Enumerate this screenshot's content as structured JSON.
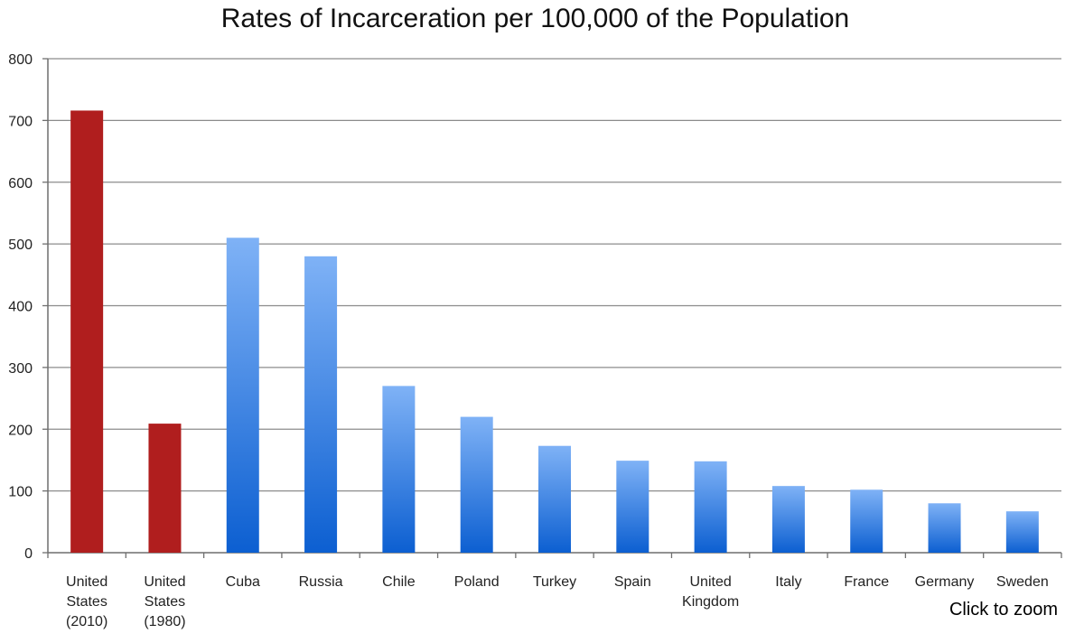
{
  "chart_data": {
    "type": "bar",
    "title": "Rates of Incarceration per 100,000 of the Population",
    "xlabel": "",
    "ylabel": "",
    "ylim": [
      0,
      800
    ],
    "yticks": [
      0,
      100,
      200,
      300,
      400,
      500,
      600,
      700,
      800
    ],
    "grid": true,
    "categories": [
      [
        "United",
        "States",
        "(2010)"
      ],
      [
        "United",
        "States",
        "(1980)"
      ],
      [
        "Cuba"
      ],
      [
        "Russia"
      ],
      [
        "Chile"
      ],
      [
        "Poland"
      ],
      [
        "Turkey"
      ],
      [
        "Spain"
      ],
      [
        "United",
        "Kingdom"
      ],
      [
        "Italy"
      ],
      [
        "France"
      ],
      [
        "Germany"
      ],
      [
        "Sweden"
      ]
    ],
    "values": [
      716,
      209,
      510,
      480,
      270,
      220,
      173,
      149,
      148,
      108,
      102,
      80,
      67
    ],
    "bar_groups": [
      "us",
      "us",
      "intl",
      "intl",
      "intl",
      "intl",
      "intl",
      "intl",
      "intl",
      "intl",
      "intl",
      "intl",
      "intl"
    ],
    "colors": {
      "us_bar": "#b01e1e",
      "intl_bar_top": "#7fb2f6",
      "intl_bar_bottom": "#0c5fd1",
      "grid": "#8c8c8c",
      "axis": "#6f6f6f",
      "text": "#222222"
    }
  },
  "ui": {
    "zoom_label": "Click to zoom"
  }
}
